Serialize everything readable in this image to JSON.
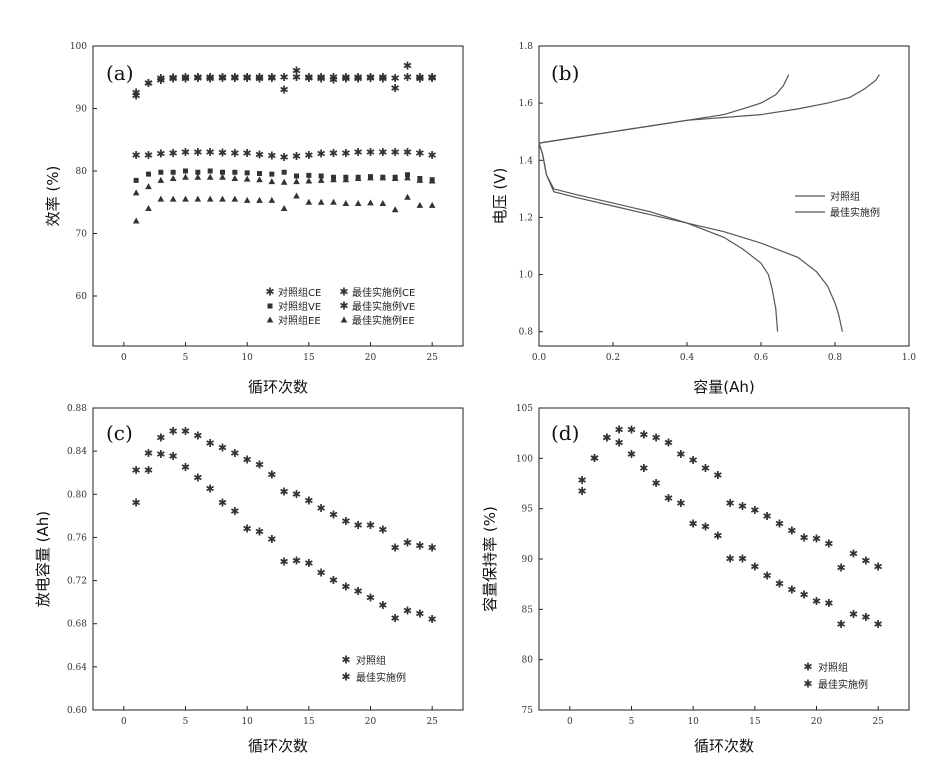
{
  "chart_data": [
    {
      "id": "a",
      "type": "scatter",
      "panel_label": "(a)",
      "xlabel": "循环次数",
      "ylabel": "效率 (%)",
      "xlim": [
        -2.5,
        27.5
      ],
      "ylim": [
        52,
        100
      ],
      "xticks": [
        0,
        5,
        10,
        15,
        20,
        25
      ],
      "yticks": [
        60,
        70,
        80,
        90,
        100
      ],
      "legend_position": "bottom-right",
      "series": [
        {
          "name": "对照组CE",
          "marker": "star",
          "x": [
            1,
            2,
            3,
            4,
            5,
            6,
            7,
            8,
            9,
            10,
            11,
            12,
            13,
            14,
            15,
            16,
            17,
            18,
            19,
            20,
            21,
            22,
            23,
            24,
            25
          ],
          "y": [
            92.5,
            94,
            94.5,
            94.7,
            94.7,
            94.8,
            94.7,
            94.8,
            94.8,
            94.8,
            94.7,
            94.8,
            93,
            96,
            94.8,
            94.7,
            94.6,
            94.7,
            94.7,
            94.8,
            94.7,
            93.2,
            96.8,
            94.7,
            94.8
          ]
        },
        {
          "name": "对照组VE",
          "marker": "square",
          "x": [
            1,
            2,
            3,
            4,
            5,
            6,
            7,
            8,
            9,
            10,
            11,
            12,
            13,
            14,
            15,
            16,
            17,
            18,
            19,
            20,
            21,
            22,
            23,
            24,
            25
          ],
          "y": [
            78.5,
            79.5,
            79.8,
            79.8,
            80,
            79.8,
            80,
            79.8,
            79.8,
            79.7,
            79.6,
            79.5,
            79.8,
            79.2,
            79.3,
            79.2,
            79,
            79,
            79,
            79.1,
            79,
            79,
            79.4,
            78.8,
            78.6
          ]
        },
        {
          "name": "对照组EE",
          "marker": "triangle",
          "x": [
            1,
            2,
            3,
            4,
            5,
            6,
            7,
            8,
            9,
            10,
            11,
            12,
            13,
            14,
            15,
            16,
            17,
            18,
            19,
            20,
            21,
            22,
            23,
            24,
            25
          ],
          "y": [
            72,
            74,
            75.5,
            75.5,
            75.5,
            75.5,
            75.5,
            75.5,
            75.5,
            75.3,
            75.3,
            75.3,
            74,
            76,
            75,
            75,
            75,
            74.8,
            74.8,
            74.9,
            74.8,
            73.8,
            75.8,
            74.5,
            74.5
          ]
        },
        {
          "name": "最佳实施例CE",
          "marker": "star",
          "x": [
            1,
            2,
            3,
            4,
            5,
            6,
            7,
            8,
            9,
            10,
            11,
            12,
            13,
            14,
            15,
            16,
            17,
            18,
            19,
            20,
            21,
            22,
            23,
            24,
            25
          ],
          "y": [
            92,
            94,
            94.8,
            94.9,
            95,
            95,
            95,
            95,
            95,
            95,
            95,
            95,
            95,
            95,
            95,
            95,
            95,
            95,
            95,
            95,
            95,
            94.8,
            95,
            95,
            95
          ]
        },
        {
          "name": "最佳实施例VE",
          "marker": "star",
          "x": [
            1,
            2,
            3,
            4,
            5,
            6,
            7,
            8,
            9,
            10,
            11,
            12,
            13,
            14,
            15,
            16,
            17,
            18,
            19,
            20,
            21,
            22,
            23,
            24,
            25
          ],
          "y": [
            82.5,
            82.5,
            82.7,
            82.8,
            83,
            83,
            83,
            82.9,
            82.8,
            82.8,
            82.6,
            82.4,
            82.2,
            82.3,
            82.5,
            82.7,
            82.8,
            82.8,
            83,
            83,
            83,
            83,
            83,
            82.8,
            82.5
          ]
        },
        {
          "name": "最佳实施例EE",
          "marker": "triangle",
          "x": [
            1,
            2,
            3,
            4,
            5,
            6,
            7,
            8,
            9,
            10,
            11,
            12,
            13,
            14,
            15,
            16,
            17,
            18,
            19,
            20,
            21,
            22,
            23,
            24,
            25
          ],
          "y": [
            76.5,
            77.5,
            78.5,
            78.8,
            79,
            79,
            79,
            79,
            78.8,
            78.7,
            78.6,
            78.3,
            78.2,
            78.3,
            78.4,
            78.5,
            78.6,
            78.6,
            78.8,
            78.9,
            78.9,
            78.8,
            78.9,
            78.5,
            78.4
          ]
        }
      ]
    },
    {
      "id": "b",
      "type": "line",
      "panel_label": "(b)",
      "xlabel": "容量(Ah)",
      "ylabel": "电压 (V)",
      "xlim": [
        0.0,
        1.0
      ],
      "ylim": [
        0.75,
        1.8
      ],
      "xticks": [
        "0.0",
        "0.2",
        "0.4",
        "0.6",
        "0.8",
        "1.0"
      ],
      "yticks": [
        "0.8",
        "1.0",
        "1.2",
        "1.4",
        "1.6",
        "1.8"
      ],
      "legend_position": "center-right",
      "series": [
        {
          "name": "对照组",
          "segments": [
            {
              "x": [
                0.0,
                0.1,
                0.2,
                0.3,
                0.4,
                0.5,
                0.55,
                0.6,
                0.64,
                0.66,
                0.675
              ],
              "y": [
                1.46,
                1.48,
                1.5,
                1.52,
                1.54,
                1.56,
                1.58,
                1.6,
                1.63,
                1.66,
                1.7
              ]
            },
            {
              "x": [
                0.0,
                0.01,
                0.02,
                0.04,
                0.1,
                0.2,
                0.3,
                0.4,
                0.5,
                0.55,
                0.6,
                0.62,
                0.63,
                0.64,
                0.645
              ],
              "y": [
                1.46,
                1.42,
                1.35,
                1.3,
                1.28,
                1.25,
                1.22,
                1.18,
                1.13,
                1.09,
                1.04,
                1.0,
                0.95,
                0.88,
                0.8
              ]
            }
          ]
        },
        {
          "name": "最佳实施例",
          "segments": [
            {
              "x": [
                0.0,
                0.2,
                0.4,
                0.6,
                0.7,
                0.78,
                0.84,
                0.88,
                0.91,
                0.92
              ],
              "y": [
                1.46,
                1.5,
                1.54,
                1.56,
                1.58,
                1.6,
                1.62,
                1.65,
                1.68,
                1.7
              ]
            },
            {
              "x": [
                0.0,
                0.01,
                0.02,
                0.04,
                0.1,
                0.2,
                0.3,
                0.4,
                0.5,
                0.6,
                0.7,
                0.75,
                0.78,
                0.8,
                0.81,
                0.82
              ],
              "y": [
                1.46,
                1.42,
                1.35,
                1.29,
                1.27,
                1.24,
                1.21,
                1.18,
                1.15,
                1.11,
                1.06,
                1.01,
                0.96,
                0.9,
                0.86,
                0.8
              ]
            }
          ]
        }
      ]
    },
    {
      "id": "c",
      "type": "scatter",
      "panel_label": "(c)",
      "xlabel": "循环次数",
      "ylabel": "放电容量 (Ah)",
      "xlim": [
        -2.5,
        27.5
      ],
      "ylim": [
        0.6,
        0.88
      ],
      "xticks": [
        0,
        5,
        10,
        15,
        20,
        25
      ],
      "yticks": [
        "0.60",
        "0.64",
        "0.68",
        "0.72",
        "0.76",
        "0.80",
        "0.84",
        "0.88"
      ],
      "legend_position": "bottom-right",
      "series": [
        {
          "name": "对照组",
          "marker": "star",
          "x": [
            1,
            2,
            3,
            4,
            5,
            6,
            7,
            8,
            9,
            10,
            11,
            12,
            13,
            14,
            15,
            16,
            17,
            18,
            19,
            20,
            21,
            22,
            23,
            24,
            25
          ],
          "y": [
            0.792,
            0.822,
            0.837,
            0.835,
            0.825,
            0.815,
            0.805,
            0.792,
            0.784,
            0.768,
            0.765,
            0.758,
            0.737,
            0.738,
            0.736,
            0.727,
            0.72,
            0.714,
            0.71,
            0.704,
            0.697,
            0.685,
            0.692,
            0.689,
            0.684
          ]
        },
        {
          "name": "最佳实施例",
          "marker": "star",
          "x": [
            1,
            2,
            3,
            4,
            5,
            6,
            7,
            8,
            9,
            10,
            11,
            12,
            13,
            14,
            15,
            16,
            17,
            18,
            19,
            20,
            21,
            22,
            23,
            24,
            25
          ],
          "y": [
            0.822,
            0.838,
            0.852,
            0.858,
            0.858,
            0.854,
            0.847,
            0.843,
            0.838,
            0.832,
            0.827,
            0.818,
            0.802,
            0.8,
            0.794,
            0.787,
            0.781,
            0.775,
            0.771,
            0.771,
            0.767,
            0.75,
            0.755,
            0.752,
            0.75
          ]
        }
      ]
    },
    {
      "id": "d",
      "type": "scatter",
      "panel_label": "(d)",
      "xlabel": "循环次数",
      "ylabel": "容量保持率 (%)",
      "xlim": [
        -2.5,
        27.5
      ],
      "ylim": [
        75,
        105
      ],
      "xticks": [
        0,
        5,
        10,
        15,
        20,
        25
      ],
      "yticks": [
        75,
        80,
        85,
        90,
        95,
        100,
        105
      ],
      "legend_position": "bottom-right",
      "series": [
        {
          "name": "对照组",
          "marker": "star",
          "x": [
            1,
            2,
            3,
            4,
            5,
            6,
            7,
            8,
            9,
            10,
            11,
            12,
            13,
            14,
            15,
            16,
            17,
            18,
            19,
            20,
            21,
            22,
            23,
            24,
            25
          ],
          "y": [
            96.7,
            100,
            102,
            101.5,
            100.4,
            99,
            97.5,
            96,
            95.5,
            93.5,
            93.2,
            92.3,
            90,
            90,
            89.2,
            88.3,
            87.5,
            86.9,
            86.4,
            85.8,
            85.6,
            83.5,
            84.5,
            84.2,
            83.5
          ]
        },
        {
          "name": "最佳实施例",
          "marker": "star",
          "x": [
            1,
            2,
            3,
            4,
            5,
            6,
            7,
            8,
            9,
            10,
            11,
            12,
            13,
            14,
            15,
            16,
            17,
            18,
            19,
            20,
            21,
            22,
            23,
            24,
            25
          ],
          "y": [
            97.8,
            100,
            102,
            102.8,
            102.8,
            102.3,
            102,
            101.5,
            100.4,
            99.8,
            99,
            98.3,
            95.5,
            95.2,
            94.8,
            94.2,
            93.5,
            92.8,
            92.1,
            92,
            91.5,
            89.1,
            90.5,
            89.8,
            89.2
          ]
        }
      ]
    }
  ]
}
